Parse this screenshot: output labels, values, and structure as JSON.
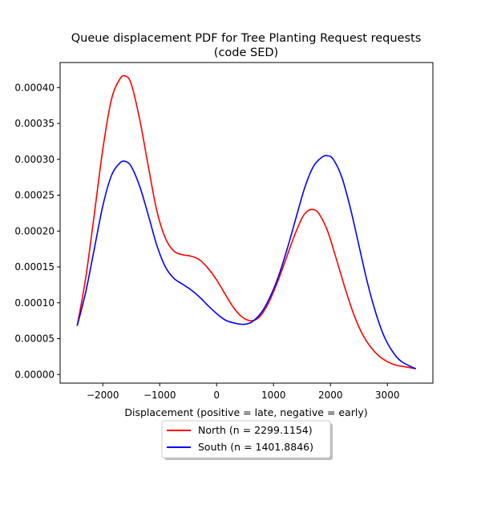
{
  "chart_data": {
    "type": "line",
    "title_line1": "Queue displacement PDF for Tree Planting Request  requests",
    "title_line2": "(code SED)",
    "xlabel": "Displacement (positive = late, negative = early)",
    "ylabel": "",
    "xlim": [
      -2750,
      3800
    ],
    "ylim": [
      -1.2e-05,
      0.000435
    ],
    "x_ticks": [
      -2000,
      -1000,
      0,
      1000,
      2000,
      3000
    ],
    "x_tick_labels": [
      "−2000",
      "−1000",
      "0",
      "1000",
      "2000",
      "3000"
    ],
    "y_ticks": [
      0,
      5e-05,
      0.0001,
      0.00015,
      0.0002,
      0.00025,
      0.0003,
      0.00035,
      0.0004
    ],
    "y_tick_labels": [
      "0.00000",
      "0.00005",
      "0.00010",
      "0.00015",
      "0.00020",
      "0.00025",
      "0.00030",
      "0.00035",
      "0.00040"
    ],
    "grid": false,
    "legend_placement": "below plot, centered",
    "series": [
      {
        "name": "North (n = 2299.1154)",
        "color": "#ff0000",
        "x": [
          -2450,
          -2300,
          -2150,
          -2000,
          -1850,
          -1700,
          -1600,
          -1500,
          -1350,
          -1200,
          -1050,
          -900,
          -750,
          -600,
          -450,
          -300,
          -150,
          0,
          150,
          300,
          450,
          600,
          750,
          900,
          1050,
          1200,
          1350,
          1500,
          1600,
          1700,
          1800,
          1950,
          2100,
          2250,
          2400,
          2550,
          2700,
          2850,
          3000,
          3150,
          3300,
          3500
        ],
        "y": [
          6.8e-05,
          0.000135,
          0.000223,
          0.000314,
          0.000383,
          0.000412,
          0.000416,
          0.000405,
          0.000355,
          0.00029,
          0.000228,
          0.00019,
          0.000172,
          0.000167,
          0.000165,
          0.00016,
          0.000148,
          0.000132,
          0.000112,
          9.3e-05,
          8e-05,
          7.5e-05,
          8e-05,
          9.8e-05,
          0.000125,
          0.000157,
          0.00019,
          0.000218,
          0.000228,
          0.00023,
          0.000224,
          0.0002,
          0.000162,
          0.000122,
          8.6e-05,
          5.8e-05,
          3.9e-05,
          2.6e-05,
          1.8e-05,
          1.3e-05,
          1.1e-05,
          8e-06
        ]
      },
      {
        "name": "South (n = 1401.8846)",
        "color": "#0000ff",
        "x": [
          -2450,
          -2300,
          -2150,
          -2000,
          -1850,
          -1700,
          -1600,
          -1500,
          -1350,
          -1200,
          -1050,
          -900,
          -750,
          -600,
          -450,
          -300,
          -150,
          0,
          150,
          300,
          450,
          550,
          650,
          800,
          950,
          1100,
          1250,
          1400,
          1550,
          1700,
          1850,
          1950,
          2050,
          2200,
          2350,
          2500,
          2650,
          2800,
          2950,
          3100,
          3250,
          3500
        ],
        "y": [
          6.8e-05,
          0.000115,
          0.000175,
          0.000235,
          0.000277,
          0.000295,
          0.000297,
          0.00029,
          0.000262,
          0.000222,
          0.00018,
          0.00015,
          0.000134,
          0.000126,
          0.000118,
          0.000108,
          9.6e-05,
          8.5e-05,
          7.6e-05,
          7.2e-05,
          7e-05,
          7.1e-05,
          7.5e-05,
          8.8e-05,
          0.00011,
          0.00014,
          0.000178,
          0.00022,
          0.000261,
          0.00029,
          0.000303,
          0.000305,
          0.0003,
          0.000275,
          0.000232,
          0.00018,
          0.000128,
          8.5e-05,
          5.2e-05,
          3.1e-05,
          1.8e-05,
          8e-06
        ]
      }
    ]
  }
}
